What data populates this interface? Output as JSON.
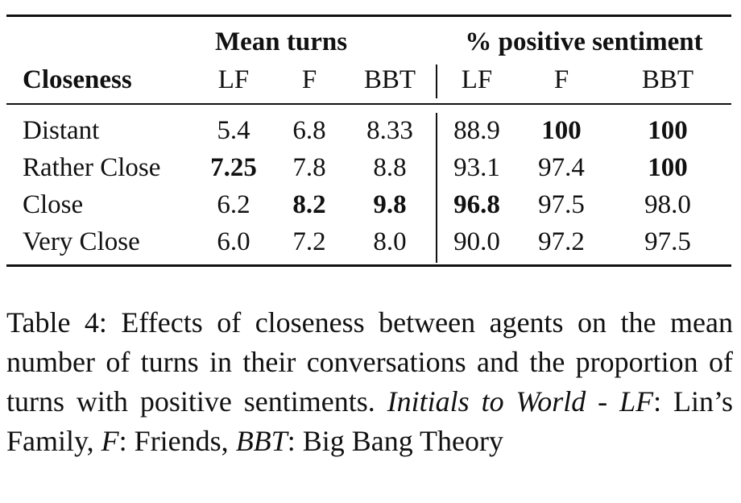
{
  "table": {
    "group_headers": {
      "mean_turns": "Mean turns",
      "positive_sentiment": "% positive sentiment"
    },
    "row_header": "Closeness",
    "columns": [
      "LF",
      "F",
      "BBT",
      "LF",
      "F",
      "BBT"
    ],
    "rows": [
      {
        "label": "Distant",
        "values": [
          "5.4",
          "6.8",
          "8.33",
          "88.9",
          "100",
          "100"
        ],
        "bold": [
          false,
          false,
          false,
          false,
          true,
          true
        ]
      },
      {
        "label": "Rather Close",
        "values": [
          "7.25",
          "7.8",
          "8.8",
          "93.1",
          "97.4",
          "100"
        ],
        "bold": [
          true,
          false,
          false,
          false,
          false,
          true
        ]
      },
      {
        "label": "Close",
        "values": [
          "6.2",
          "8.2",
          "9.8",
          "96.8",
          "97.5",
          "98.0"
        ],
        "bold": [
          false,
          true,
          true,
          true,
          false,
          false
        ]
      },
      {
        "label": "Very Close",
        "values": [
          "6.0",
          "7.2",
          "8.0",
          "90.0",
          "97.2",
          "97.5"
        ],
        "bold": [
          false,
          false,
          false,
          false,
          false,
          false
        ]
      }
    ]
  },
  "caption": {
    "lead": "Table 4: Effects of closeness between agents on the mean number of turns in their conversations and the proportion of turns with positive sentiments. ",
    "initials_label": "Initials to World",
    "sep": " - ",
    "lf_abbr": "LF",
    "lf_text": ": Lin’s Family, ",
    "f_abbr": "F",
    "f_text": ": Friends, ",
    "bbt_abbr": "BBT",
    "bbt_text": ": Big Bang Theory"
  }
}
